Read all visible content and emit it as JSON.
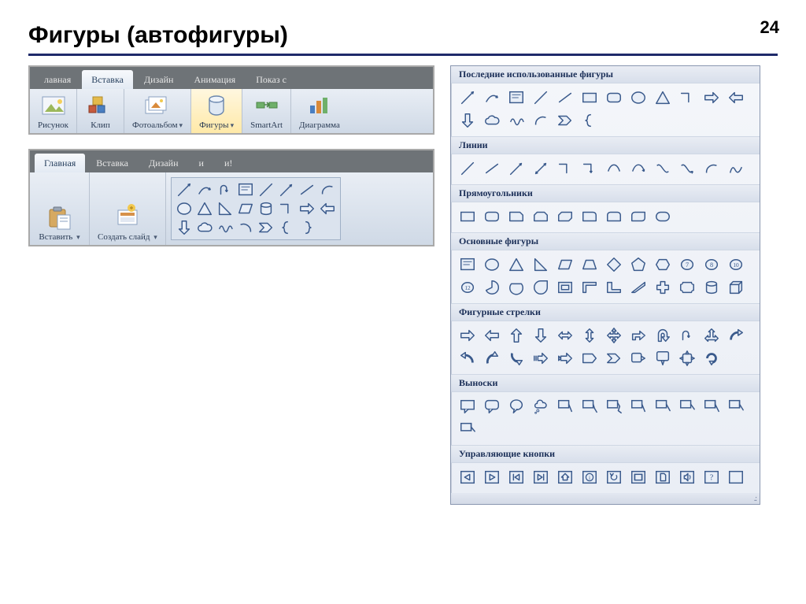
{
  "page": {
    "number": "24",
    "title": "Фигуры (автофигуры)"
  },
  "colors": {
    "rule": "#1f2a6a",
    "ribbonBg": "#6e7377",
    "ribbonBody1": "#e9eef5",
    "ribbonBody2": "#cfd9e6",
    "selected1": "#fff7e0",
    "selected2": "#ffe9a8",
    "panelBorder": "#8a97b0",
    "shapeStroke": "#3a5a8c",
    "shapeFill": "#e8eef7"
  },
  "ribbon1": {
    "tabs": [
      {
        "label": "лавная",
        "active": false
      },
      {
        "label": "Вставка",
        "active": true
      },
      {
        "label": "Дизайн",
        "active": false
      },
      {
        "label": "Анимация",
        "active": false
      },
      {
        "label": "Показ с",
        "active": false
      }
    ],
    "groups": [
      {
        "name": "picture",
        "label": "Рисунок",
        "icon": "picture"
      },
      {
        "name": "clip",
        "label": "Клип",
        "icon": "clip"
      },
      {
        "name": "album",
        "label": "Фотоальбом",
        "icon": "album",
        "dropdown": true
      },
      {
        "name": "shapes",
        "label": "Фигуры",
        "icon": "shapes",
        "dropdown": true,
        "selected": true
      },
      {
        "name": "smartart",
        "label": "SmartArt",
        "icon": "smartart"
      },
      {
        "name": "chart",
        "label": "Диаграмма",
        "icon": "chart"
      }
    ]
  },
  "ribbon2": {
    "tabs": [
      {
        "label": "Главная",
        "active": true
      },
      {
        "label": "Вставка",
        "active": false
      },
      {
        "label": "Дизайн",
        "active": false
      },
      {
        "label": "и",
        "active": false
      },
      {
        "label": "и!",
        "active": false
      }
    ],
    "groups": [
      {
        "name": "paste",
        "label": "Вставить",
        "icon": "paste",
        "dropdown": true
      },
      {
        "name": "newslide",
        "label": "Создать\nслайд",
        "icon": "newslide",
        "dropdown": true
      }
    ],
    "gallery": [
      "diag",
      "rcurve",
      "uturn",
      "textbox",
      "line",
      "arrow-ne",
      "line2",
      "arc",
      "ellipse",
      "triangle",
      "rtriangle",
      "parallelogram",
      "cylinder",
      "elbow",
      "rarrow",
      "larrow",
      "darrow",
      "cloud",
      "squiggle",
      "arc2",
      "chevron",
      "lbrace",
      "rbrace",
      "blank"
    ]
  },
  "panel": {
    "categories": [
      {
        "title": "Последние использованные фигуры",
        "shapes": [
          "diag",
          "rcurve",
          "textbox",
          "line",
          "line2",
          "rect",
          "roundrect",
          "ellipse",
          "triangle",
          "elbow",
          "rarrow",
          "larrow",
          "darrow",
          "cloud",
          "squiggle",
          "arc",
          "chevron",
          "lbrace"
        ]
      },
      {
        "title": "Линии",
        "shapes": [
          "line",
          "line2",
          "arrow-ne",
          "arrow-both",
          "elbow",
          "elbow-arrow",
          "curve",
          "curve-arrow",
          "s-curve",
          "s-arrow",
          "arc",
          "free"
        ]
      },
      {
        "title": "Прямоугольники",
        "shapes": [
          "rect",
          "roundrect",
          "snip1",
          "snip2",
          "snip-diag",
          "round1",
          "round2",
          "round-diag",
          "roundrect2"
        ]
      },
      {
        "title": "Основные фигуры",
        "shapes": [
          "textbox",
          "ellipse",
          "triangle",
          "rtriangle",
          "parallelogram",
          "trapezoid",
          "diamond",
          "pentagon",
          "hexagon",
          "n7",
          "n8",
          "n10",
          "n12",
          "pie",
          "chord",
          "teardrop",
          "frame",
          "half-frame",
          "l-shape",
          "diag-stripe",
          "plus",
          "plaque",
          "can",
          "cube"
        ]
      },
      {
        "title": "Фигурные стрелки",
        "shapes": [
          "rarrow",
          "larrow",
          "uarrow",
          "darrow",
          "lr-arrow",
          "ud-arrow",
          "quad-arrow",
          "bent-r",
          "bent-u",
          "uturn",
          "lr-up",
          "curved-r",
          "curved-l",
          "curved-u",
          "curved-d",
          "striped-r",
          "notched-r",
          "pentagon-r",
          "chevron-r",
          "callout-r",
          "callout-d",
          "callout-quad",
          "circular"
        ]
      },
      {
        "title": "Выноски",
        "shapes": [
          "rect-callout",
          "round-callout",
          "oval-callout",
          "cloud-callout",
          "line-callout1",
          "line-callout2",
          "line-callout3",
          "border-callout1",
          "border-callout2",
          "border-callout3",
          "accent-callout1",
          "accent-callout2",
          "accent-callout3"
        ]
      },
      {
        "title": "Управляющие кнопки",
        "shapes": [
          "btn-back",
          "btn-fwd",
          "btn-begin",
          "btn-end",
          "btn-home",
          "btn-info",
          "btn-return",
          "btn-movie",
          "btn-doc",
          "btn-sound",
          "btn-help",
          "btn-blank"
        ]
      }
    ]
  }
}
